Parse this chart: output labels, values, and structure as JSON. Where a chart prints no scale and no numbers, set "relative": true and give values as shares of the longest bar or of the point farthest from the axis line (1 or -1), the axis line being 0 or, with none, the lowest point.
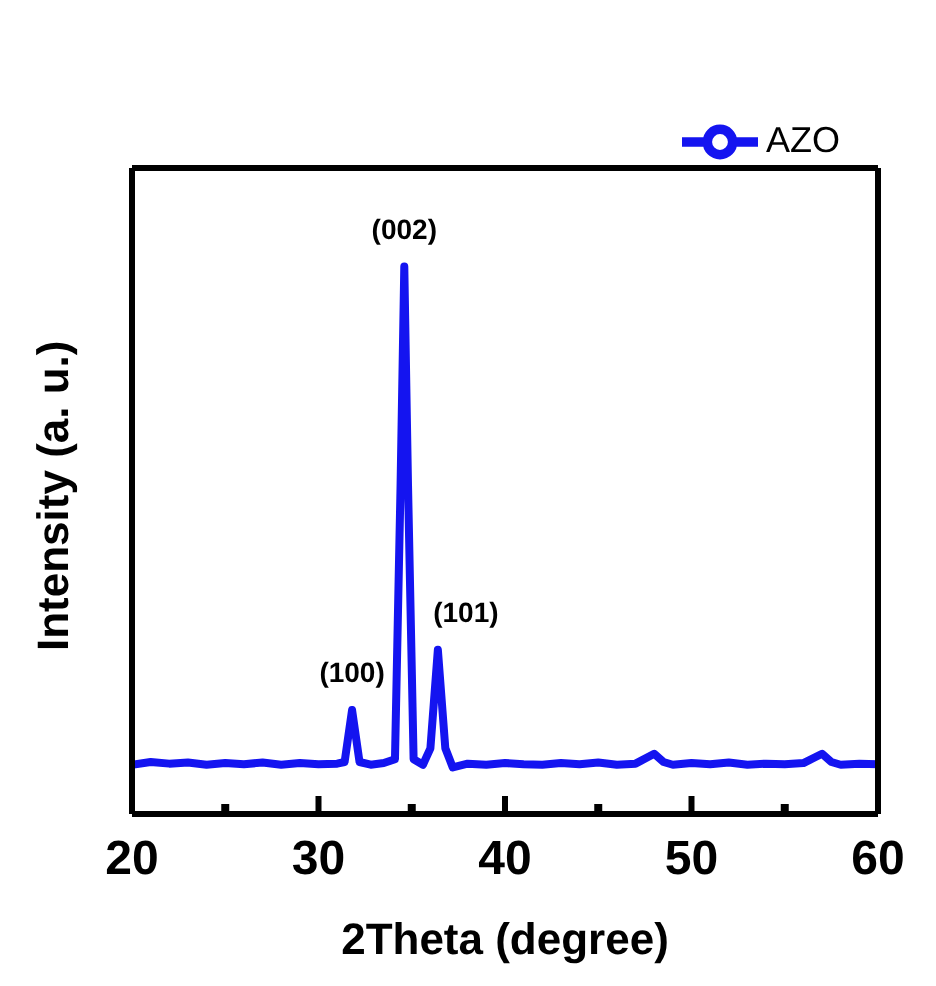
{
  "chart_data": {
    "type": "line",
    "xlabel": "2Theta (degree)",
    "ylabel": "Intensity (a. u.)",
    "relative": true,
    "x": [
      20,
      21,
      22,
      23,
      24,
      25,
      26,
      27,
      28,
      29,
      30,
      31,
      31.4,
      31.8,
      32.2,
      32.8,
      33.5,
      34.1,
      34.4,
      34.6,
      34.8,
      35.1,
      35.6,
      36.0,
      36.4,
      36.8,
      37.2,
      38,
      39,
      40,
      41,
      42,
      43,
      44,
      45,
      46,
      47,
      48,
      48.5,
      49,
      50,
      51,
      52,
      53,
      54,
      55,
      56,
      57,
      57.5,
      58,
      59,
      60
    ],
    "series": [
      {
        "name": "AZO",
        "color": "#1414f0",
        "values": [
          0.09,
          0.095,
          0.092,
          0.094,
          0.09,
          0.093,
          0.091,
          0.094,
          0.09,
          0.093,
          0.091,
          0.092,
          0.095,
          0.19,
          0.095,
          0.09,
          0.093,
          0.1,
          0.6,
          1.0,
          0.6,
          0.1,
          0.09,
          0.12,
          0.3,
          0.12,
          0.085,
          0.092,
          0.09,
          0.093,
          0.091,
          0.09,
          0.093,
          0.091,
          0.094,
          0.09,
          0.092,
          0.11,
          0.095,
          0.09,
          0.093,
          0.091,
          0.094,
          0.09,
          0.092,
          0.091,
          0.093,
          0.11,
          0.095,
          0.09,
          0.092,
          0.091
        ]
      }
    ],
    "xlim": [
      20,
      60
    ],
    "xticks": [
      20,
      {
        "value": 25,
        "label": null
      },
      30,
      {
        "value": 35,
        "label": null
      },
      40,
      {
        "value": 45,
        "label": null
      },
      50,
      {
        "value": 55,
        "label": null
      },
      60
    ],
    "annotations": [
      {
        "text": "(100)",
        "x": 31.8,
        "y": 0.19
      },
      {
        "text": "(002)",
        "x": 34.6,
        "y": 1.0
      },
      {
        "text": "(101)",
        "x": 36.4,
        "y": 0.3
      }
    ],
    "legend": "top right",
    "grid": false,
    "marker": "none",
    "line_style": "solid"
  }
}
